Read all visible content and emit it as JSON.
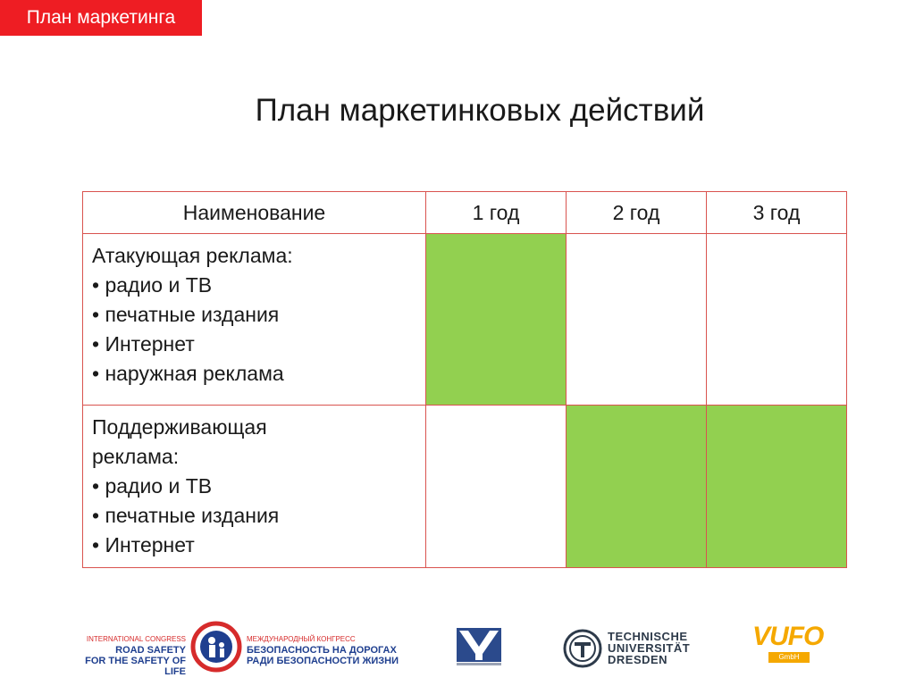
{
  "section_tag": "План маркетинга",
  "title": "План маркетинковых действий",
  "table": {
    "header": [
      "Наименование",
      "1 год",
      "2 год",
      "3 год"
    ],
    "rows": [
      {
        "lines": [
          "Атакующая реклама:",
          "• радио и ТВ",
          "• печатные издания",
          "• Интернет",
          "• наружная реклама"
        ],
        "active_years": [
          true,
          false,
          false
        ]
      },
      {
        "lines": [
          "Поддерживающая",
          "реклама:",
          "• радио и ТВ",
          "• печатные издания",
          "• Интернет"
        ],
        "active_years": [
          false,
          true,
          true
        ]
      }
    ],
    "highlight_color": "#92d050",
    "border_color": "#d9534f"
  },
  "footer": {
    "road_safety_en": [
      "INTERNATIONAL CONGRESS",
      "ROAD SAFETY",
      "FOR THE SAFETY OF LIFE"
    ],
    "road_safety_ru": [
      "МЕЖДУНАРОДНЫЙ КОНГРЕСС",
      "БЕЗОПАСНОСТЬ НА ДОРОГАХ",
      "РАДИ БЕЗОПАСНОСТИ ЖИЗНИ"
    ],
    "tu_dresden": [
      "TECHNISCHE",
      "UNIVERSITÄT",
      "DRESDEN"
    ],
    "vufo": "VUFO",
    "vufo_sub": "GmbH"
  },
  "accent_color": "#ee1d23"
}
